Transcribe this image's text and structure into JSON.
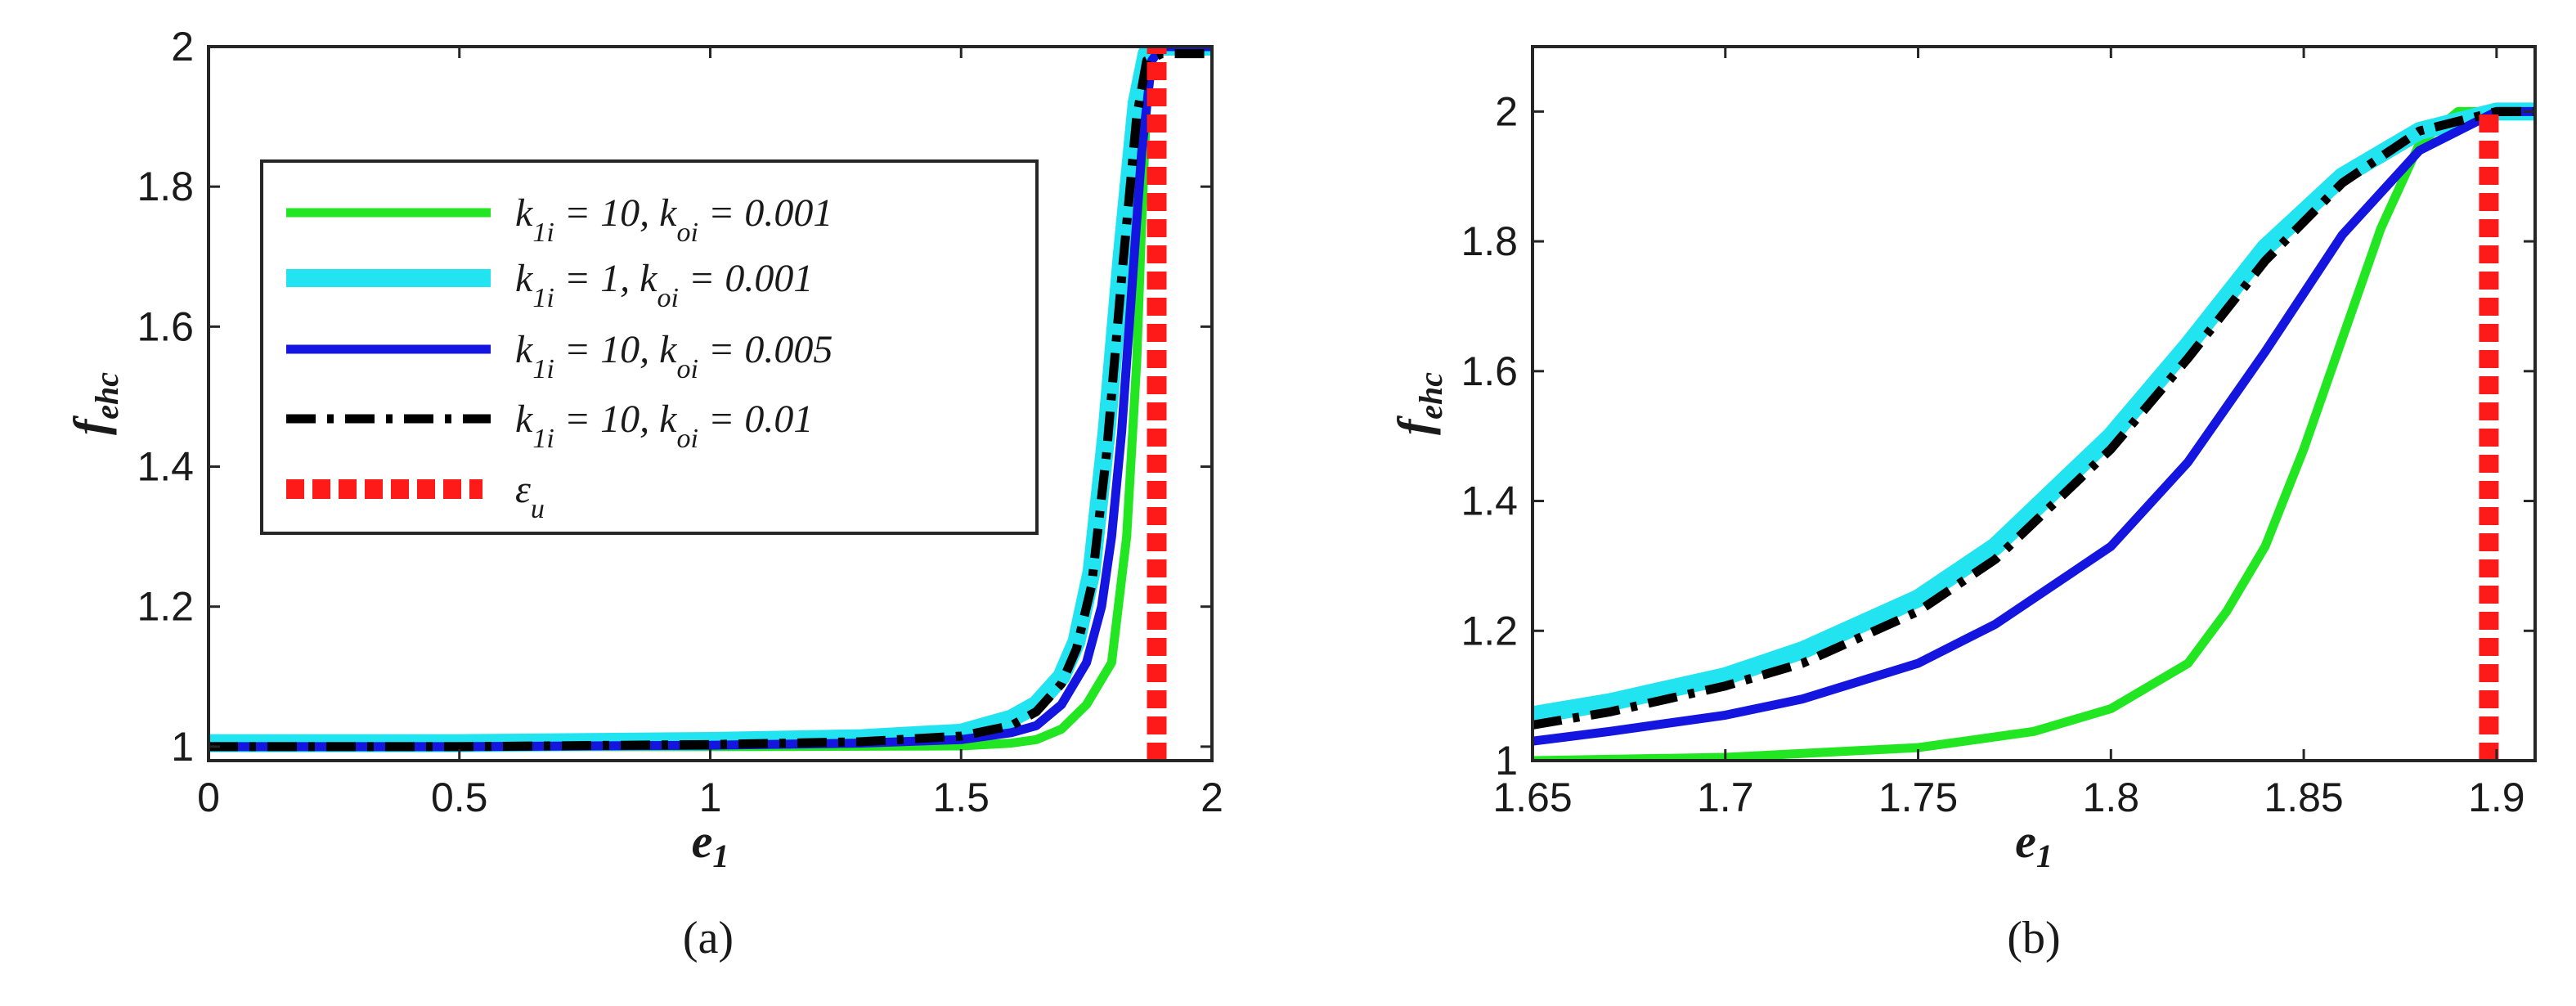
{
  "chart_data": [
    {
      "type": "line",
      "panel_caption": "(a)",
      "xlabel": "e",
      "xlabel_sub": "1",
      "ylabel": "f",
      "ylabel_sub": "ehc",
      "xlim": [
        0,
        2
      ],
      "ylim": [
        0.98,
        2
      ],
      "xticks": [
        0,
        0.5,
        1,
        1.5,
        2
      ],
      "xtick_labels": [
        "0",
        "0.5",
        "1",
        "1.5",
        "2"
      ],
      "yticks": [
        1,
        1.2,
        1.4,
        1.6,
        1.8,
        2
      ],
      "ytick_labels": [
        "1",
        "1.2",
        "1.4",
        "1.6",
        "1.8",
        "2"
      ],
      "legend_position": "upper-left",
      "series": [
        {
          "name": "k1i = 10, koi = 0.001",
          "label": "k_{1i} = 10, k_{oi} = 0.001",
          "color": "#22e622",
          "style": "solid",
          "x": [
            0,
            0.5,
            1.0,
            1.5,
            1.6,
            1.65,
            1.7,
            1.75,
            1.8,
            1.83,
            1.85,
            1.86,
            1.87,
            1.88,
            1.9,
            2.0
          ],
          "y": [
            1.0,
            1.0,
            1.0,
            1.001,
            1.005,
            1.01,
            1.025,
            1.06,
            1.12,
            1.3,
            1.55,
            1.75,
            1.92,
            1.98,
            2.0,
            2.0
          ]
        },
        {
          "name": "k1i = 1, koi = 0.001",
          "label": "k_{1i} = 1, k_{oi} = 0.001",
          "color": "#22e3f0",
          "style": "thick",
          "x": [
            0,
            0.5,
            1.0,
            1.3,
            1.5,
            1.6,
            1.65,
            1.7,
            1.73,
            1.76,
            1.79,
            1.82,
            1.85,
            1.87,
            1.9,
            2.0
          ],
          "y": [
            1.005,
            1.005,
            1.008,
            1.012,
            1.02,
            1.04,
            1.06,
            1.1,
            1.15,
            1.25,
            1.45,
            1.7,
            1.92,
            1.99,
            2.0,
            2.0
          ]
        },
        {
          "name": "k1i = 10, koi = 0.005",
          "label": "k_{1i} = 10, k_{oi} = 0.005",
          "color": "#1515e0",
          "style": "solid",
          "x": [
            0,
            0.5,
            1.0,
            1.3,
            1.5,
            1.6,
            1.65,
            1.7,
            1.75,
            1.78,
            1.8,
            1.82,
            1.84,
            1.86,
            1.88,
            1.9,
            2.0
          ],
          "y": [
            1.0,
            1.0,
            1.002,
            1.005,
            1.01,
            1.02,
            1.03,
            1.06,
            1.12,
            1.2,
            1.3,
            1.45,
            1.65,
            1.85,
            1.98,
            2.0,
            2.0
          ]
        },
        {
          "name": "k1i = 10, koi = 0.01",
          "label": "k_{1i} = 10, k_{oi} = 0.01",
          "color": "#000000",
          "style": "dashdot",
          "x": [
            0,
            0.5,
            1.0,
            1.3,
            1.5,
            1.6,
            1.65,
            1.7,
            1.73,
            1.76,
            1.79,
            1.82,
            1.85,
            1.87,
            1.9,
            2.0
          ],
          "y": [
            1.0,
            1.0,
            1.003,
            1.007,
            1.015,
            1.03,
            1.05,
            1.09,
            1.14,
            1.23,
            1.42,
            1.67,
            1.9,
            1.98,
            1.99,
            1.99
          ]
        }
      ],
      "markers": [
        {
          "name": "εu",
          "label": "ε_u",
          "color": "#ff1a1a",
          "style": "dotted-vertical",
          "x": 1.89,
          "y_range": [
            0.98,
            2.0
          ]
        }
      ]
    },
    {
      "type": "line",
      "panel_caption": "(b)",
      "xlabel": "e",
      "xlabel_sub": "1",
      "ylabel": "f",
      "ylabel_sub": "ehc",
      "xlim": [
        1.65,
        1.91
      ],
      "ylim": [
        1.0,
        2.1
      ],
      "xticks": [
        1.65,
        1.7,
        1.75,
        1.8,
        1.85,
        1.9
      ],
      "xtick_labels": [
        "1.65",
        "1.7",
        "1.75",
        "1.8",
        "1.85",
        "1.9"
      ],
      "yticks": [
        1,
        1.2,
        1.4,
        1.6,
        1.8,
        2
      ],
      "ytick_labels": [
        "1",
        "1.2",
        "1.4",
        "1.6",
        "1.8",
        "2"
      ],
      "series": [
        {
          "name": "k1i = 10, koi = 0.001",
          "color": "#22e622",
          "style": "solid",
          "x": [
            1.65,
            1.7,
            1.75,
            1.78,
            1.8,
            1.82,
            1.83,
            1.84,
            1.85,
            1.86,
            1.87,
            1.88,
            1.89,
            1.91
          ],
          "y": [
            1.0,
            1.005,
            1.02,
            1.045,
            1.08,
            1.15,
            1.23,
            1.33,
            1.48,
            1.65,
            1.82,
            1.95,
            2.0,
            2.0
          ]
        },
        {
          "name": "k1i = 1, koi = 0.001",
          "color": "#22e3f0",
          "style": "thick",
          "x": [
            1.65,
            1.67,
            1.7,
            1.72,
            1.75,
            1.77,
            1.8,
            1.82,
            1.84,
            1.86,
            1.88,
            1.9,
            1.91
          ],
          "y": [
            1.07,
            1.09,
            1.13,
            1.17,
            1.25,
            1.33,
            1.5,
            1.64,
            1.79,
            1.9,
            1.97,
            2.0,
            2.0
          ]
        },
        {
          "name": "k1i = 10, koi = 0.005",
          "color": "#1515e0",
          "style": "solid",
          "x": [
            1.65,
            1.67,
            1.7,
            1.72,
            1.75,
            1.77,
            1.8,
            1.82,
            1.84,
            1.86,
            1.88,
            1.9,
            1.91
          ],
          "y": [
            1.03,
            1.045,
            1.07,
            1.095,
            1.15,
            1.21,
            1.33,
            1.46,
            1.63,
            1.81,
            1.94,
            2.0,
            2.0
          ]
        },
        {
          "name": "k1i = 10, koi = 0.01",
          "color": "#000000",
          "style": "dashdot",
          "x": [
            1.65,
            1.67,
            1.7,
            1.72,
            1.75,
            1.77,
            1.8,
            1.82,
            1.84,
            1.86,
            1.88,
            1.9,
            1.91
          ],
          "y": [
            1.055,
            1.075,
            1.115,
            1.15,
            1.23,
            1.31,
            1.48,
            1.62,
            1.77,
            1.89,
            1.97,
            2.0,
            2.0
          ]
        }
      ],
      "markers": [
        {
          "name": "εu",
          "color": "#ff1a1a",
          "style": "dotted-vertical",
          "x": 1.898,
          "y_range": [
            1.0,
            2.0
          ]
        }
      ]
    }
  ]
}
